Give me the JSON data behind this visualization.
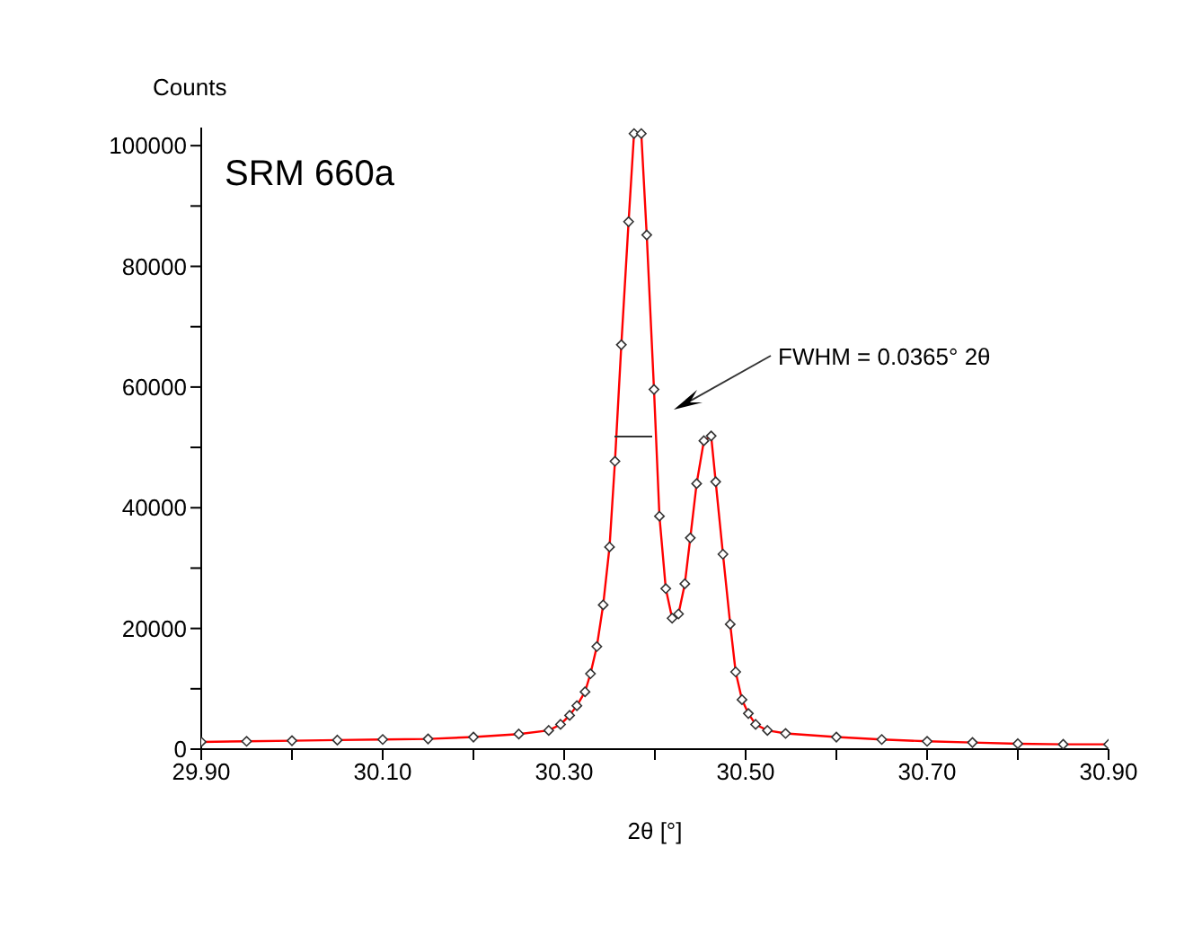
{
  "chart_data": {
    "type": "line",
    "ylabel": "Counts",
    "xlabel": "2θ [°]",
    "annotations": [
      "SRM 660a",
      "FWHM = 0.0365° 2θ"
    ],
    "xlim": [
      29.9,
      30.9
    ],
    "ylim": [
      0,
      103000
    ],
    "xticks": [
      {
        "value": 29.9,
        "label": "29.90"
      },
      {
        "value": 30.0,
        "label": null
      },
      {
        "value": 30.1,
        "label": "30.10"
      },
      {
        "value": 30.2,
        "label": null
      },
      {
        "value": 30.3,
        "label": "30.30"
      },
      {
        "value": 30.4,
        "label": null
      },
      {
        "value": 30.5,
        "label": "30.50"
      },
      {
        "value": 30.6,
        "label": null
      },
      {
        "value": 30.7,
        "label": "30.70"
      },
      {
        "value": 30.8,
        "label": null
      },
      {
        "value": 30.9,
        "label": "30.90"
      }
    ],
    "yticks": [
      0,
      {
        "value": 10000,
        "label": null
      },
      20000,
      {
        "value": 30000,
        "label": null
      },
      40000,
      {
        "value": 50000,
        "label": null
      },
      60000,
      {
        "value": 70000,
        "label": null
      },
      80000,
      {
        "value": 90000,
        "label": null
      },
      100000
    ],
    "marker": "diamond",
    "series": [
      {
        "color": "#ff0000",
        "x": [
          29.9,
          29.95,
          30.0,
          30.05,
          30.1,
          30.15,
          30.2,
          30.25,
          30.283,
          30.296,
          30.306,
          30.314,
          30.323,
          30.329,
          30.336,
          30.343,
          30.35,
          30.356,
          30.363,
          30.371,
          30.377,
          30.385,
          30.391,
          30.399,
          30.405,
          30.412,
          30.419,
          30.426,
          30.433,
          30.439,
          30.446,
          30.454,
          30.462,
          30.467,
          30.475,
          30.483,
          30.489,
          30.496,
          30.503,
          30.511,
          30.524,
          30.544,
          30.6,
          30.65,
          30.7,
          30.75,
          30.8,
          30.85,
          30.9
        ],
        "values": [
          1200,
          1300,
          1400,
          1500,
          1600,
          1700,
          2000,
          2500,
          3100,
          4100,
          5600,
          7200,
          9500,
          12500,
          17000,
          23900,
          33500,
          47700,
          67000,
          87400,
          102000,
          102000,
          85200,
          59600,
          38600,
          26600,
          21700,
          22400,
          27400,
          35000,
          44000,
          51100,
          51900,
          44300,
          32300,
          20700,
          12800,
          8200,
          5900,
          4100,
          3100,
          2600,
          2000,
          1600,
          1300,
          1100,
          900,
          800,
          800
        ]
      }
    ]
  }
}
